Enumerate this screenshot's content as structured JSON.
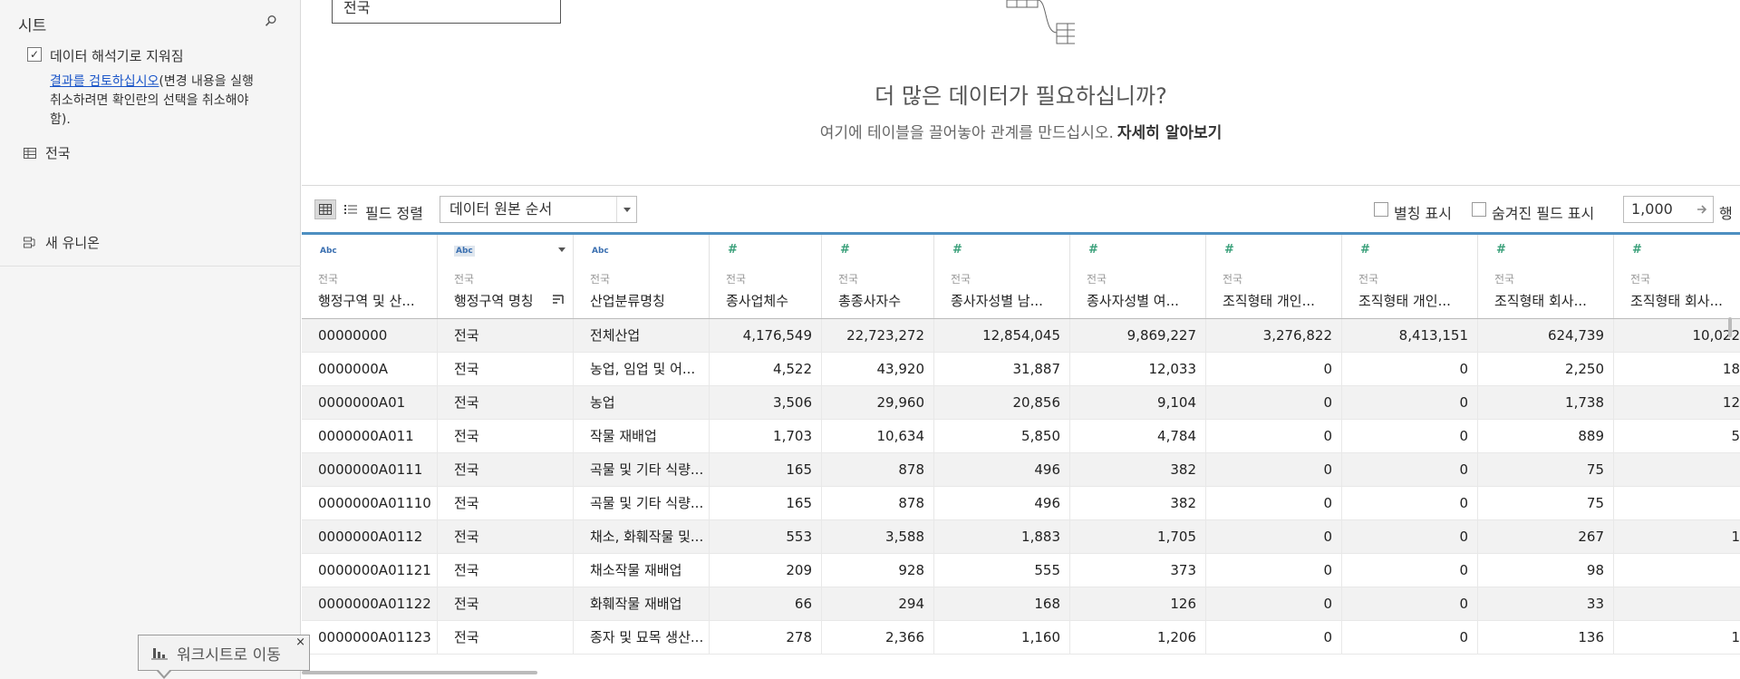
{
  "sidebar": {
    "title": "시트",
    "interpreter_label": "데이터 해석기로 지워짐",
    "review_link": "결과를 검토하십시오",
    "review_rest": "(변경 내용을 실행 취소하려면 확인란의 선택을 취소해야 함).",
    "sheet_name": "전국",
    "new_union": "새 유니온"
  },
  "tooltip": {
    "label": "워크시트로 이동",
    "close": "×"
  },
  "canvas": {
    "connection_name": "전국",
    "title": "더 많은 데이터가 필요하십니까?",
    "subtitle": "여기에 테이블을 끌어놓아 관계를 만드십시오.",
    "learn_more": "자세히 알아보기"
  },
  "toolbar": {
    "sort_label": "필드 정렬",
    "sort_value": "데이터 원본 순서",
    "alias_label": "별칭 표시",
    "hidden_label": "숨겨진 필드 표시",
    "rows_value": "1,000",
    "rows_label": "행"
  },
  "grid": {
    "columns": [
      {
        "type": "Abc",
        "source": "전국",
        "name": "행정구역 및 산..."
      },
      {
        "type": "Abc",
        "source": "전국",
        "name": "행정구역 명칭"
      },
      {
        "type": "Abc",
        "source": "전국",
        "name": "산업분류명칭"
      },
      {
        "type": "#",
        "source": "전국",
        "name": "종사업체수"
      },
      {
        "type": "#",
        "source": "전국",
        "name": "총종사자수"
      },
      {
        "type": "#",
        "source": "전국",
        "name": "종사자성별 남..."
      },
      {
        "type": "#",
        "source": "전국",
        "name": "종사자성별 여..."
      },
      {
        "type": "#",
        "source": "전국",
        "name": "조직형태 개인..."
      },
      {
        "type": "#",
        "source": "전국",
        "name": "조직형태 개인..."
      },
      {
        "type": "#",
        "source": "전국",
        "name": "조직형태 회사..."
      },
      {
        "type": "#",
        "source": "전국",
        "name": "조직형태 회사..."
      }
    ],
    "rows": [
      [
        "00000000",
        "전국",
        "전체산업",
        "4,176,549",
        "22,723,272",
        "12,854,045",
        "9,869,227",
        "3,276,822",
        "8,413,151",
        "624,739",
        "10,022"
      ],
      [
        "0000000A",
        "전국",
        "농업, 임업 및 어...",
        "4,522",
        "43,920",
        "31,887",
        "12,033",
        "0",
        "0",
        "2,250",
        "18"
      ],
      [
        "0000000A01",
        "전국",
        "농업",
        "3,506",
        "29,960",
        "20,856",
        "9,104",
        "0",
        "0",
        "1,738",
        "12"
      ],
      [
        "0000000A011",
        "전국",
        "작물 재배업",
        "1,703",
        "10,634",
        "5,850",
        "4,784",
        "0",
        "0",
        "889",
        "5"
      ],
      [
        "0000000A0111",
        "전국",
        "곡물 및 기타 식량...",
        "165",
        "878",
        "496",
        "382",
        "0",
        "0",
        "75",
        ""
      ],
      [
        "0000000A01110",
        "전국",
        "곡물 및 기타 식량...",
        "165",
        "878",
        "496",
        "382",
        "0",
        "0",
        "75",
        ""
      ],
      [
        "0000000A0112",
        "전국",
        "채소, 화훼작물 및...",
        "553",
        "3,588",
        "1,883",
        "1,705",
        "0",
        "0",
        "267",
        "1"
      ],
      [
        "0000000A01121",
        "전국",
        "채소작물 재배업",
        "209",
        "928",
        "555",
        "373",
        "0",
        "0",
        "98",
        ""
      ],
      [
        "0000000A01122",
        "전국",
        "화훼작물 재배업",
        "66",
        "294",
        "168",
        "126",
        "0",
        "0",
        "33",
        ""
      ],
      [
        "0000000A01123",
        "전국",
        "종자 및 묘목 생산...",
        "278",
        "2,366",
        "1,160",
        "1,206",
        "0",
        "0",
        "136",
        "1"
      ]
    ]
  }
}
